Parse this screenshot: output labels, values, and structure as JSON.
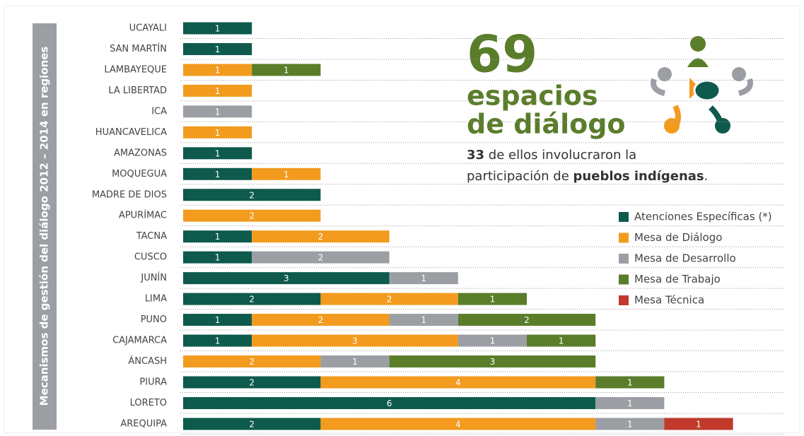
{
  "chart_data": {
    "type": "stacked_barh",
    "side_label": "Mecanismos de gestión del diálogo 2012 – 2014 en regiones",
    "categories": [
      "UCAYALI",
      "SAN MARTÍN",
      "LAMBAYEQUE",
      "LA LIBERTAD",
      "ICA",
      "HUANCAVELICA",
      "AMAZONAS",
      "MOQUEGUA",
      "MADRE DE DIOS",
      "APURÍMAC",
      "TACNA",
      "CUSCO",
      "JUNÍN",
      "LIMA",
      "PUNO",
      "CAJAMARCA",
      "ÁNCASH",
      "PIURA",
      "LORETO",
      "AREQUIPA"
    ],
    "series": [
      {
        "name": "Atenciones Específicas (*)",
        "color": "#0e5a4c",
        "values": [
          1,
          1,
          null,
          null,
          null,
          null,
          1,
          1,
          2,
          null,
          1,
          1,
          3,
          2,
          1,
          1,
          null,
          2,
          6,
          2
        ]
      },
      {
        "name": "Mesa de Diálogo",
        "color": "#f29b1f",
        "values": [
          null,
          null,
          1,
          1,
          null,
          1,
          null,
          1,
          null,
          2,
          2,
          null,
          null,
          2,
          2,
          3,
          2,
          4,
          null,
          4
        ]
      },
      {
        "name": "Mesa de Desarrollo",
        "color": "#9b9fa4",
        "values": [
          null,
          null,
          null,
          null,
          1,
          null,
          null,
          null,
          null,
          null,
          null,
          2,
          1,
          null,
          1,
          1,
          1,
          null,
          1,
          1
        ]
      },
      {
        "name": "Mesa de Trabajo",
        "color": "#5a7d2a",
        "values": [
          null,
          null,
          1,
          null,
          null,
          null,
          null,
          null,
          null,
          null,
          null,
          null,
          null,
          1,
          2,
          1,
          3,
          1,
          null,
          null
        ]
      },
      {
        "name": "Mesa Técnica",
        "color": "#c0392b",
        "values": [
          null,
          null,
          null,
          null,
          null,
          null,
          null,
          null,
          null,
          null,
          null,
          null,
          null,
          null,
          null,
          null,
          null,
          null,
          null,
          1
        ]
      }
    ],
    "annotations": {
      "headline": "69",
      "subhead": [
        "espacios",
        "de diálogo"
      ],
      "note_line1": [
        "33",
        " de ellos involucraron la"
      ],
      "note_line2": [
        "participación de ",
        "pueblos indígenas",
        "."
      ]
    }
  }
}
